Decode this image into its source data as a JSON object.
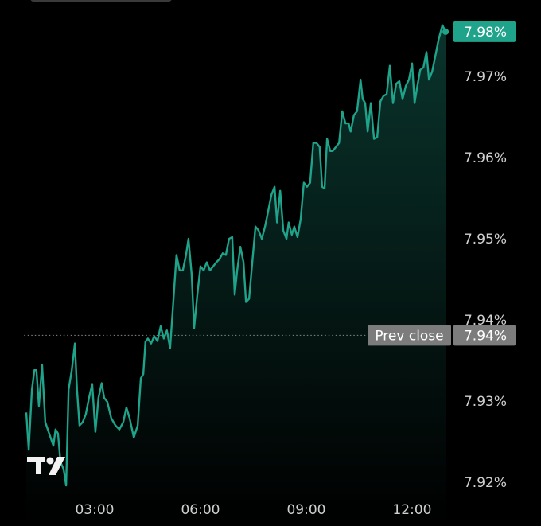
{
  "chart_data": {
    "type": "area",
    "color": "#1fa38a",
    "x": [
      1.06,
      1.13,
      1.22,
      1.29,
      1.35,
      1.42,
      1.51,
      1.6,
      1.71,
      1.83,
      1.89,
      1.96,
      2.03,
      2.12,
      2.19,
      2.26,
      2.35,
      2.44,
      2.5,
      2.57,
      2.66,
      2.75,
      2.84,
      2.93,
      3.02,
      3.11,
      3.2,
      3.27,
      3.36,
      3.47,
      3.59,
      3.7,
      3.81,
      3.9,
      3.99,
      4.11,
      4.22,
      4.31,
      4.38,
      4.44,
      4.51,
      4.6,
      4.69,
      4.78,
      4.87,
      4.96,
      5.05,
      5.14,
      5.23,
      5.32,
      5.41,
      5.5,
      5.59,
      5.66,
      5.75,
      5.82,
      5.91,
      6.0,
      6.09,
      6.18,
      6.27,
      6.36,
      6.45,
      6.54,
      6.63,
      6.72,
      6.81,
      6.9,
      6.97,
      7.04,
      7.13,
      7.22,
      7.29,
      7.38,
      7.47,
      7.56,
      7.65,
      7.74,
      7.83,
      7.92,
      8.01,
      8.1,
      8.17,
      8.26,
      8.35,
      8.44,
      8.5,
      8.59,
      8.66,
      8.75,
      8.84,
      8.93,
      9.02,
      9.11,
      9.2,
      9.29,
      9.38,
      9.45,
      9.52,
      9.59,
      9.68,
      9.75,
      9.84,
      9.93,
      10.02,
      10.11,
      10.2,
      10.26,
      10.35,
      10.44,
      10.54,
      10.6,
      10.67,
      10.74,
      10.83,
      10.92,
      11.01,
      11.1,
      11.19,
      11.28,
      11.37,
      11.46,
      11.55,
      11.64,
      11.73,
      11.82,
      11.91,
      12.0,
      12.07,
      12.14,
      12.23,
      12.32,
      12.41,
      12.48,
      12.57,
      12.66,
      12.75,
      12.86,
      12.95
    ],
    "values": [
      7.9287,
      7.9241,
      7.9315,
      7.9339,
      7.9339,
      7.9295,
      7.9346,
      7.9275,
      7.9261,
      7.9246,
      7.9266,
      7.9261,
      7.9226,
      7.9217,
      7.9197,
      7.9315,
      7.9339,
      7.9372,
      7.9315,
      7.9271,
      7.9275,
      7.9285,
      7.9305,
      7.9322,
      7.9263,
      7.9305,
      7.9323,
      7.9305,
      7.93,
      7.928,
      7.9271,
      7.9266,
      7.9275,
      7.9293,
      7.928,
      7.9256,
      7.9271,
      7.9329,
      7.9334,
      7.9374,
      7.9378,
      7.9372,
      7.9381,
      7.9375,
      7.9393,
      7.9378,
      7.9388,
      7.9366,
      7.9423,
      7.9481,
      7.9462,
      7.9462,
      7.9481,
      7.9501,
      7.9457,
      7.9391,
      7.9432,
      7.9467,
      7.9462,
      7.9472,
      7.9462,
      7.9467,
      7.9472,
      7.9476,
      7.9483,
      7.9481,
      7.9501,
      7.9503,
      7.9432,
      7.9462,
      7.9491,
      7.9472,
      7.9423,
      7.9427,
      7.9472,
      7.9516,
      7.9511,
      7.9501,
      7.9516,
      7.9535,
      7.9555,
      7.9565,
      7.9521,
      7.956,
      7.9511,
      7.9501,
      7.9521,
      7.9506,
      7.9516,
      7.9503,
      7.9525,
      7.957,
      7.9565,
      7.957,
      7.9619,
      7.9619,
      7.9614,
      7.9565,
      7.9563,
      7.9624,
      7.9609,
      7.9609,
      7.9614,
      7.9619,
      7.9658,
      7.9643,
      7.9643,
      7.9633,
      7.9653,
      7.9658,
      7.9697,
      7.9673,
      7.9668,
      7.9633,
      7.9668,
      7.9624,
      7.9626,
      7.967,
      7.9677,
      7.9679,
      7.9714,
      7.9668,
      7.9692,
      7.9695,
      7.9673,
      7.9689,
      7.9697,
      7.9717,
      7.9668,
      7.9687,
      7.9709,
      7.9712,
      7.9731,
      7.9697,
      7.9707,
      7.9726,
      7.9746,
      7.9764,
      7.9756
    ],
    "last_value_label": "7.98%",
    "xlim": [
      1,
      13
    ],
    "xticks": [
      {
        "value": 3,
        "label": "03:00"
      },
      {
        "value": 6,
        "label": "06:00"
      },
      {
        "value": 9,
        "label": "09:00"
      },
      {
        "value": 12,
        "label": "12:00"
      }
    ],
    "ylim": [
      7.915,
      7.98
    ],
    "yticks": [
      {
        "value": 7.92,
        "label": "7.92%"
      },
      {
        "value": 7.93,
        "label": "7.93%"
      },
      {
        "value": 7.94,
        "label": "7.94%"
      },
      {
        "value": 7.95,
        "label": "7.95%"
      },
      {
        "value": 7.96,
        "label": "7.96%"
      },
      {
        "value": 7.97,
        "label": "7.97%"
      }
    ],
    "prev_close": {
      "label": "Prev close",
      "value": 7.9382,
      "value_label": "7.94%"
    }
  }
}
